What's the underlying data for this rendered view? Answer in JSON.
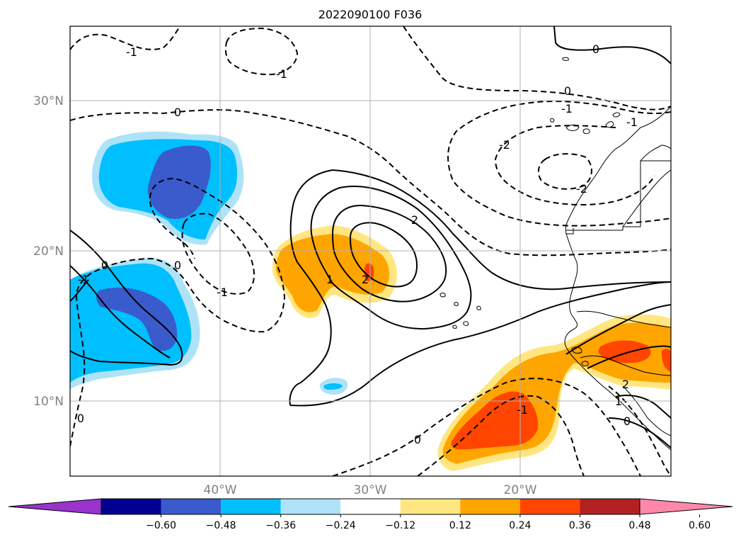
{
  "title": "2022090100 F036",
  "map": {
    "lat_labels": [
      "30°N",
      "20°N",
      "10°N"
    ],
    "lon_labels": [
      "40°W",
      "30°W",
      "20°W"
    ],
    "extent": {
      "lon_min": -50,
      "lon_max": -10,
      "lat_min": 5,
      "lat_max": 35
    }
  },
  "contour_labels": {
    "top_left_dashed": "-1",
    "top_center_dashed": "-1",
    "upper_right_zero": "0",
    "upper_zero_band": "0",
    "upper_left_zero": "0",
    "upper_right_minus1": "-1",
    "right_minus2_a": "-2",
    "right_minus2_b": "-2",
    "left_zero_a": "0",
    "left_zero_b": "0",
    "left_minus1": "-1",
    "left_minus1_edge": "-1",
    "left_edge_zero": "0",
    "center_plus2_top": "2",
    "center_plus2_inner": "2",
    "center_plus1": "1",
    "lower_center_zero": "0",
    "lower_right_minus1": "-1",
    "lower_right_plus2": "2",
    "lower_right_plus1": "1",
    "lower_right_zero": "0",
    "right_edge_minus1": "-1"
  },
  "colorbar": {
    "labels": [
      "−0.60",
      "−0.48",
      "−0.36",
      "−0.24",
      "−0.12",
      "0.12",
      "0.24",
      "0.36",
      "0.48",
      "0.60"
    ],
    "colors": [
      "#9933cc",
      "#000090",
      "#3a5bcc",
      "#00bfff",
      "#aee3f7",
      "#ffffff",
      "#ffe680",
      "#ffa500",
      "#ff4500",
      "#b22222",
      "#ff88aa"
    ]
  }
}
